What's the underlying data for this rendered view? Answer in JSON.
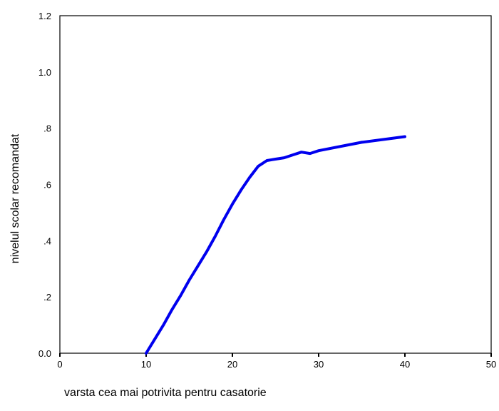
{
  "chart_data": {
    "type": "line",
    "title": "",
    "xlabel": "varsta cea mai potrivita pentru casatorie",
    "ylabel": "nivelul scolar recomandat",
    "xlim": [
      0,
      50
    ],
    "ylim": [
      0,
      1.2
    ],
    "x_ticks": [
      0,
      10,
      20,
      30,
      40,
      50
    ],
    "x_tick_labels": [
      "0",
      "10",
      "20",
      "30",
      "40",
      "50"
    ],
    "y_ticks": [
      0.0,
      0.2,
      0.4,
      0.6,
      0.8,
      1.0,
      1.2
    ],
    "y_tick_labels": [
      "0.0",
      ".2",
      ".4",
      ".6",
      ".8",
      "1.0",
      "1.2"
    ],
    "grid": false,
    "legend": "none",
    "series": [
      {
        "color": "#0000ee",
        "x": [
          10,
          11,
          12,
          13,
          14,
          15,
          16,
          17,
          18,
          19,
          20,
          21,
          22,
          23,
          24,
          25,
          26,
          27,
          28,
          29,
          30,
          35,
          40
        ],
        "y": [
          0.0,
          0.05,
          0.1,
          0.155,
          0.205,
          0.26,
          0.31,
          0.36,
          0.415,
          0.475,
          0.53,
          0.58,
          0.625,
          0.665,
          0.685,
          0.69,
          0.695,
          0.705,
          0.715,
          0.71,
          0.72,
          0.75,
          0.77
        ]
      }
    ]
  }
}
